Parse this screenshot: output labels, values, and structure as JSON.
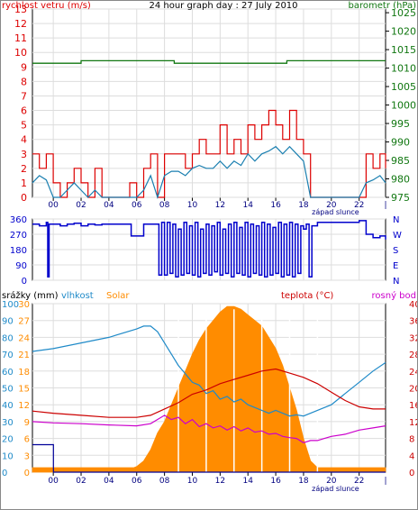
{
  "colors": {
    "wind": "#dd0000",
    "gust": "#dd0000",
    "avgwind": "#1a7fb0",
    "barometer": "#117711",
    "direction": "#0000cc",
    "humidity": "#1f8ac8",
    "solar": "#ff8c00",
    "temperature": "#cc0000",
    "dewpoint": "#cc00cc",
    "rain": "#000099",
    "axis": "#000000",
    "grid": "#dddddd",
    "xlabel": "#000080"
  },
  "chart_data": [
    {
      "type": "line",
      "title": "24 hour graph day : 27 July 2010",
      "left_axis_label": "rychlost vetru (m/s)",
      "right_axis_label": "barometr (hPa)",
      "sunset_label": "západ slunce",
      "x_ticks": [
        "00",
        "02",
        "04",
        "06",
        "08",
        "10",
        "12",
        "14",
        "16",
        "18",
        "20",
        "22"
      ],
      "left_ticks": [
        "0",
        "1",
        "2",
        "3",
        "4",
        "5",
        "6",
        "7",
        "8",
        "9",
        "10",
        "11",
        "12",
        "13"
      ],
      "left_range": [
        0,
        13
      ],
      "right_ticks": [
        "975",
        "980",
        "985",
        "990",
        "995",
        "1000",
        "1005",
        "1010",
        "1015",
        "1020",
        "1025"
      ],
      "right_range": [
        975,
        1026
      ],
      "x_range": [
        -1.5,
        23.9
      ],
      "barometer": {
        "x": [
          -1.5,
          1.8,
          2.0,
          8.5,
          8.7,
          16.6,
          16.8,
          23.9
        ],
        "y": [
          1011.3,
          1011.3,
          1012.0,
          1012.0,
          1011.3,
          1011.3,
          1012.0,
          1012.0
        ]
      },
      "gust": {
        "x": [
          -1.5,
          -1,
          -0.5,
          0,
          0.5,
          1,
          1.5,
          2,
          2.5,
          3,
          3.5,
          4,
          4.5,
          5,
          5.5,
          6,
          6.5,
          7,
          7.5,
          8,
          8.5,
          9,
          9.5,
          10,
          10.5,
          11,
          11.5,
          12,
          12.5,
          13,
          13.5,
          14,
          14.5,
          15,
          15.5,
          16,
          16.5,
          17,
          17.5,
          18,
          18.5,
          19,
          19.5,
          20,
          20.5,
          21,
          21.5,
          22,
          22.5,
          23,
          23.5,
          23.9
        ],
        "y": [
          3,
          2,
          3,
          1,
          0,
          1,
          2,
          1,
          0,
          2,
          0,
          0,
          0,
          0,
          1,
          0,
          2,
          3,
          0,
          3,
          3,
          3,
          2,
          3,
          4,
          3,
          3,
          5,
          3,
          4,
          3,
          5,
          4,
          5,
          6,
          5,
          4,
          6,
          4,
          3,
          0,
          0,
          0,
          0,
          0,
          0,
          0,
          0,
          3,
          2,
          3,
          2
        ]
      },
      "avg_wind": {
        "x": [
          -1.5,
          -1,
          -0.5,
          0,
          0.5,
          1,
          1.5,
          2,
          2.5,
          3,
          3.5,
          4,
          4.5,
          5,
          5.5,
          6,
          6.5,
          7,
          7.5,
          8,
          8.5,
          9,
          9.5,
          10,
          10.5,
          11,
          11.5,
          12,
          12.5,
          13,
          13.5,
          14,
          14.5,
          15,
          15.5,
          16,
          16.5,
          17,
          17.5,
          18,
          18.5,
          19,
          19.5,
          20,
          20.5,
          21,
          21.5,
          22,
          22.5,
          23,
          23.5,
          23.9
        ],
        "y": [
          1,
          1.5,
          1.2,
          0,
          0,
          0.5,
          1,
          0.5,
          0,
          0.5,
          0,
          0,
          0,
          0,
          0,
          0,
          0.5,
          1.5,
          0,
          1.5,
          1.8,
          1.8,
          1.5,
          2,
          2.2,
          2,
          2,
          2.5,
          2,
          2.5,
          2.2,
          3,
          2.5,
          3,
          3.2,
          3.5,
          3,
          3.5,
          3,
          2.5,
          0,
          0,
          0,
          0,
          0,
          0,
          0,
          0,
          1,
          1.2,
          1.5,
          1
        ]
      }
    },
    {
      "type": "line",
      "left_ticks": [
        "0",
        "90",
        "180",
        "270",
        "360"
      ],
      "right_ticks": [
        "N",
        "W",
        "S",
        "E",
        "N"
      ],
      "y_range": [
        0,
        360
      ],
      "direction": {
        "x": [
          -1.5,
          -1,
          -0.5,
          -0.4,
          -0.3,
          0,
          0.5,
          1,
          1.5,
          2,
          2.5,
          3,
          3.5,
          4,
          5,
          5.5,
          5.6,
          6,
          6.5,
          7,
          7.5,
          7.6,
          7.8,
          8,
          8.2,
          8.4,
          8.6,
          8.8,
          9,
          9.2,
          9.4,
          9.6,
          9.8,
          10,
          10.2,
          10.4,
          10.6,
          10.8,
          11,
          11.2,
          11.4,
          11.6,
          11.8,
          12,
          12.2,
          12.4,
          12.6,
          12.8,
          13,
          13.2,
          13.4,
          13.6,
          13.8,
          14,
          14.2,
          14.4,
          14.6,
          14.8,
          15,
          15.2,
          15.4,
          15.6,
          15.8,
          16,
          16.2,
          16.4,
          16.6,
          16.8,
          17,
          17.2,
          17.4,
          17.6,
          17.8,
          18,
          18.2,
          18.4,
          18.6,
          19,
          20,
          21,
          21.5,
          22,
          22.5,
          23,
          23.5,
          23.9
        ],
        "y": [
          330,
          320,
          340,
          20,
          330,
          330,
          320,
          330,
          335,
          320,
          330,
          325,
          330,
          330,
          330,
          330,
          260,
          260,
          330,
          330,
          330,
          30,
          340,
          30,
          340,
          40,
          330,
          20,
          300,
          30,
          340,
          40,
          320,
          30,
          340,
          20,
          300,
          40,
          330,
          30,
          320,
          50,
          340,
          30,
          300,
          40,
          330,
          20,
          340,
          40,
          310,
          30,
          340,
          20,
          330,
          40,
          320,
          30,
          340,
          20,
          330,
          30,
          310,
          40,
          340,
          20,
          330,
          30,
          340,
          20,
          330,
          40,
          320,
          300,
          330,
          20,
          320,
          340,
          340,
          340,
          340,
          350,
          270,
          250,
          260,
          240
        ]
      }
    },
    {
      "type": "line",
      "left_labels": [
        "srážky (mm)",
        "vlhkost",
        "Solar"
      ],
      "right_labels": [
        "teplota (°C)",
        "rosný bod"
      ],
      "sunset_label": "západ slunce",
      "x_ticks": [
        "00",
        "02",
        "04",
        "06",
        "08",
        "10",
        "12",
        "14",
        "16",
        "18",
        "20",
        "22"
      ],
      "humidity_ticks": [
        "0",
        "10",
        "20",
        "30",
        "40",
        "50",
        "60",
        "70",
        "80",
        "90",
        "100"
      ],
      "rain_ticks": [
        "0",
        "3",
        "6",
        "9",
        "12",
        "15",
        "18",
        "21",
        "24",
        "27",
        "30"
      ],
      "right_ticks": [
        "0",
        "4",
        "8",
        "12",
        "16",
        "20",
        "24",
        "28",
        "32",
        "36",
        "40"
      ],
      "temp_range": [
        0,
        40
      ],
      "rain_range": [
        0,
        30
      ],
      "x_range": [
        -1.5,
        23.9
      ],
      "humidity": {
        "x": [
          -1.5,
          0,
          2,
          4,
          6,
          6.5,
          7,
          7.5,
          8,
          8.5,
          9,
          9.5,
          10,
          10.5,
          11,
          11.5,
          12,
          12.5,
          13,
          13.5,
          14,
          14.5,
          15,
          15.5,
          16,
          16.5,
          17,
          17.5,
          18,
          18.5,
          19,
          20,
          21,
          22,
          23,
          23.9
        ],
        "y": [
          21.5,
          22,
          23,
          24,
          25.5,
          26,
          26,
          25,
          23,
          21,
          19,
          17.5,
          16,
          15.5,
          14,
          14.5,
          13,
          13.5,
          12.5,
          13,
          12,
          11.5,
          11,
          10.5,
          11,
          10.5,
          10,
          10.2,
          10,
          10.5,
          11,
          12,
          14,
          16,
          18,
          19.5
        ]
      },
      "temperature": {
        "x": [
          -1.5,
          0,
          2,
          4,
          6,
          7,
          8,
          9,
          10,
          11,
          12,
          13,
          14,
          15,
          16,
          17,
          18,
          19,
          20,
          21,
          22,
          23,
          23.9
        ],
        "y": [
          14.5,
          14,
          13.5,
          13,
          13,
          13.5,
          15,
          16.5,
          18.5,
          19.5,
          21,
          22,
          23,
          24,
          24.5,
          23.5,
          22.5,
          21,
          19,
          17,
          15.5,
          15,
          15
        ]
      },
      "dewpoint": {
        "x": [
          -1.5,
          0,
          2,
          4,
          6,
          7,
          8,
          8.5,
          9,
          9.5,
          10,
          10.5,
          11,
          11.5,
          12,
          12.5,
          13,
          13.5,
          14,
          14.5,
          15,
          15.5,
          16,
          16.5,
          17,
          17.5,
          18,
          18.5,
          19,
          19.5,
          20,
          21,
          22,
          23,
          23.9
        ],
        "y": [
          12,
          11.7,
          11.5,
          11.2,
          11,
          11.5,
          13.5,
          12.5,
          13,
          11.5,
          12.5,
          10.8,
          11.5,
          10.5,
          11,
          10,
          10.8,
          9.8,
          10.5,
          9.5,
          9.8,
          9,
          9.2,
          8.5,
          8.2,
          8,
          7,
          7.5,
          7.5,
          8,
          8.5,
          9,
          10,
          10.5,
          11
        ]
      },
      "rain": {
        "x": [
          -1.5,
          0,
          0.01,
          23.9
        ],
        "y": [
          4.9,
          4.9,
          0,
          0
        ]
      },
      "solar": {
        "x": [
          -1.5,
          5.6,
          5.8,
          6,
          6.5,
          7,
          7.5,
          8,
          8.5,
          9,
          9.5,
          10,
          10.5,
          11,
          11.5,
          12,
          12.5,
          13,
          13.5,
          14,
          14.5,
          15,
          15.5,
          16,
          16.5,
          17,
          17.5,
          18,
          18.5,
          19,
          23.9
        ],
        "y": [
          0.8,
          0.8,
          0.8,
          1,
          2,
          4,
          7,
          9,
          12,
          15,
          18,
          21,
          23.5,
          25.5,
          27,
          28.5,
          29.5,
          29.5,
          29,
          28,
          27,
          26,
          24,
          22,
          19,
          15,
          11,
          6,
          2,
          0.8,
          0.8
        ]
      }
    }
  ]
}
